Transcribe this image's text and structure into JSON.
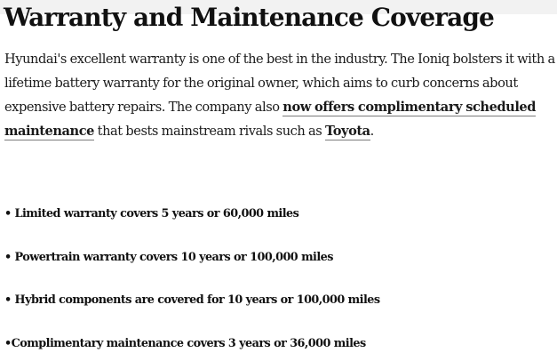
{
  "article": {
    "heading": "Warranty and Maintenance Coverage",
    "intro": {
      "part1": "Hyundai's excellent warranty is one of the best in the industry. The Ioniq bolsters it with a lifetime battery warranty for the original owner, which aims to curb concerns about expensive battery repairs. The company also ",
      "link1": "now offers complimentary scheduled maintenance",
      "part2": " that bests mainstream rivals such as ",
      "link2": "Toyota",
      "part3": "."
    },
    "bullets": [
      "• Limited warranty covers 5 years or 60,000 miles",
      "• Powertrain warranty covers 10 years or 100,000 miles",
      "• Hybrid components are covered for 10 years or 100,000 miles",
      "•Complimentary maintenance covers 3 years or 36,000 miles"
    ]
  }
}
